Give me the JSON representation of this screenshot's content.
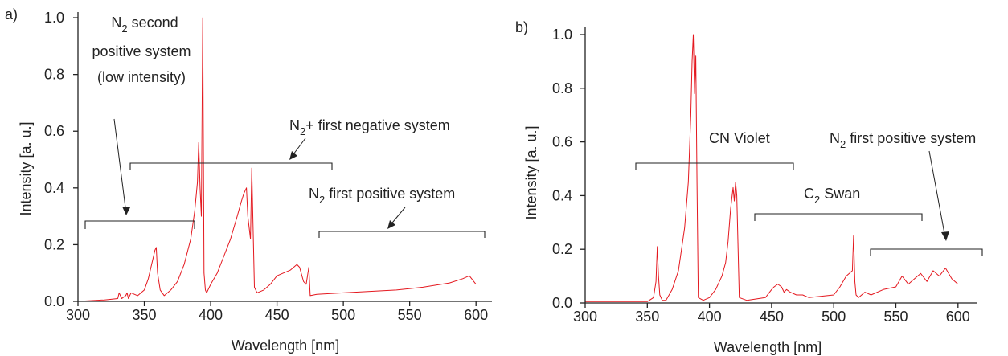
{
  "colors": {
    "series": "#e4181f",
    "axis": "#222222"
  },
  "chart_data": [
    {
      "type": "line",
      "panel_label": "a)",
      "xlabel": "Wavelength [nm]",
      "ylabel": "Intensity [a. u.]",
      "xlim": [
        300,
        612
      ],
      "ylim": [
        0,
        1.02
      ],
      "xticks": [
        "300",
        "350",
        "400",
        "450",
        "500",
        "550",
        "600"
      ],
      "yticks": [
        "0.0",
        "0.2",
        "0.4",
        "0.6",
        "0.8",
        "1.0"
      ],
      "grid": false,
      "series": [
        {
          "x": [
            300,
            320,
            330,
            331,
            333,
            336,
            337,
            338,
            340,
            345,
            350,
            353,
            355,
            357,
            358,
            359,
            360,
            362,
            365,
            370,
            375,
            380,
            385,
            388,
            390,
            391,
            392,
            393,
            394,
            395,
            396,
            397,
            400,
            405,
            410,
            415,
            420,
            423,
            425,
            427,
            428,
            430,
            431,
            433,
            435,
            440,
            445,
            450,
            455,
            460,
            465,
            467,
            470,
            472,
            474,
            475,
            480,
            500,
            520,
            540,
            560,
            580,
            590,
            595,
            600
          ],
          "y": [
            0.0,
            0.005,
            0.01,
            0.03,
            0.01,
            0.02,
            0.03,
            0.01,
            0.03,
            0.02,
            0.04,
            0.08,
            0.12,
            0.16,
            0.18,
            0.19,
            0.1,
            0.04,
            0.02,
            0.04,
            0.07,
            0.13,
            0.22,
            0.32,
            0.42,
            0.56,
            0.4,
            0.3,
            1.0,
            0.1,
            0.04,
            0.03,
            0.06,
            0.1,
            0.16,
            0.22,
            0.3,
            0.35,
            0.38,
            0.4,
            0.3,
            0.22,
            0.47,
            0.05,
            0.03,
            0.04,
            0.06,
            0.09,
            0.1,
            0.11,
            0.13,
            0.12,
            0.07,
            0.06,
            0.12,
            0.02,
            0.025,
            0.03,
            0.035,
            0.04,
            0.05,
            0.065,
            0.08,
            0.09,
            0.06
          ]
        }
      ],
      "annotations": [
        {
          "label": "N₂ second",
          "sub": "positive system",
          "sub2": "(low intensity)"
        },
        {
          "label": "N₂+  first negative system"
        },
        {
          "label": "N₂ first positive system"
        }
      ]
    },
    {
      "type": "line",
      "panel_label": "b)",
      "xlabel": "Wavelength [nm]",
      "ylabel": "Intensity [a. u.]",
      "xlim": [
        300,
        615
      ],
      "ylim": [
        0,
        1.03
      ],
      "xticks": [
        "300",
        "350",
        "400",
        "450",
        "500",
        "550",
        "600"
      ],
      "yticks": [
        "0.0",
        "0.2",
        "0.4",
        "0.6",
        "0.8",
        "1.0"
      ],
      "grid": false,
      "series": [
        {
          "x": [
            300,
            340,
            350,
            355,
            357,
            358,
            359,
            360,
            362,
            365,
            370,
            375,
            380,
            383,
            385,
            386,
            387,
            388,
            389,
            390,
            391,
            395,
            400,
            405,
            410,
            413,
            415,
            417,
            419,
            420,
            421,
            422,
            424,
            430,
            445,
            450,
            452,
            455,
            458,
            460,
            462,
            465,
            470,
            475,
            480,
            500,
            505,
            510,
            515,
            516,
            517,
            518,
            520,
            525,
            530,
            540,
            550,
            555,
            560,
            565,
            570,
            575,
            580,
            585,
            590,
            595,
            600
          ],
          "y": [
            0.005,
            0.005,
            0.005,
            0.02,
            0.08,
            0.21,
            0.1,
            0.03,
            0.01,
            0.01,
            0.05,
            0.12,
            0.28,
            0.45,
            0.7,
            0.9,
            1.0,
            0.78,
            0.92,
            0.45,
            0.02,
            0.01,
            0.02,
            0.05,
            0.1,
            0.15,
            0.23,
            0.35,
            0.43,
            0.38,
            0.45,
            0.4,
            0.02,
            0.01,
            0.02,
            0.05,
            0.06,
            0.07,
            0.06,
            0.04,
            0.05,
            0.04,
            0.03,
            0.03,
            0.02,
            0.03,
            0.06,
            0.1,
            0.12,
            0.25,
            0.08,
            0.03,
            0.02,
            0.04,
            0.03,
            0.05,
            0.06,
            0.1,
            0.07,
            0.09,
            0.11,
            0.08,
            0.12,
            0.1,
            0.13,
            0.09,
            0.07
          ]
        }
      ],
      "annotations": [
        {
          "label": "CN Violet"
        },
        {
          "label": "C₂ Swan"
        },
        {
          "label": "N₂ first positive system"
        }
      ]
    }
  ]
}
